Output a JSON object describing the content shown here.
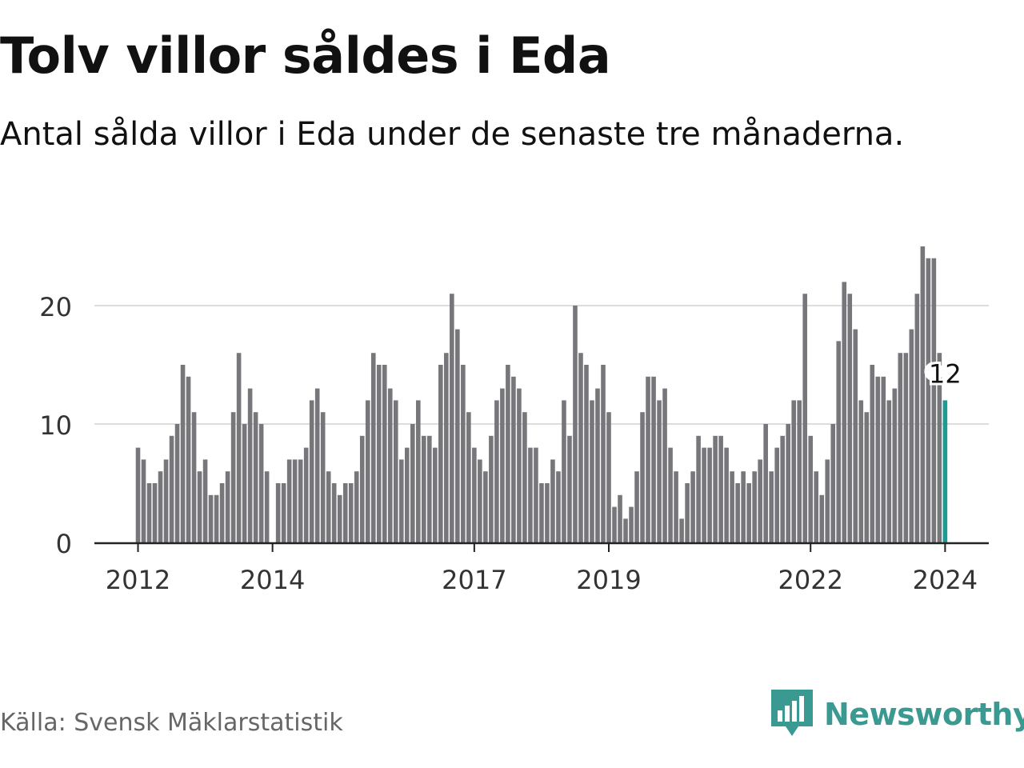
{
  "title": "Tolv villor såldes i Eda",
  "subtitle": "Antal sålda villor i Eda under de senaste tre månaderna.",
  "source": "Källa: Svensk Mäklarstatistik",
  "brand": "Newsworthy",
  "colors": {
    "bar": "#77767b",
    "highlight": "#1a9c93",
    "grid": "#dddddd",
    "axis": "#222222",
    "brand": "#3a9990"
  },
  "chart_data": {
    "type": "bar",
    "title": "Tolv villor såldes i Eda",
    "subtitle": "Antal sålda villor i Eda under de senaste tre månaderna.",
    "xlabel": "",
    "ylabel": "",
    "ylim": [
      0,
      25
    ],
    "yticks": [
      0,
      10,
      20
    ],
    "grid": true,
    "start": "2012-01",
    "xticks": [
      {
        "label": "2012",
        "index": 0
      },
      {
        "label": "2014",
        "index": 24
      },
      {
        "label": "2017",
        "index": 60
      },
      {
        "label": "2019",
        "index": 84
      },
      {
        "label": "2022",
        "index": 120
      },
      {
        "label": "2024",
        "index": 144
      }
    ],
    "highlight_index": 144,
    "highlight_label": "12",
    "values": [
      8,
      7,
      5,
      5,
      6,
      7,
      9,
      10,
      15,
      14,
      11,
      6,
      7,
      4,
      4,
      5,
      6,
      11,
      16,
      10,
      13,
      11,
      10,
      6,
      0,
      5,
      5,
      7,
      7,
      7,
      8,
      12,
      13,
      11,
      6,
      5,
      4,
      5,
      5,
      6,
      9,
      12,
      16,
      15,
      15,
      13,
      12,
      7,
      8,
      10,
      12,
      9,
      9,
      8,
      15,
      16,
      21,
      18,
      15,
      11,
      8,
      7,
      6,
      9,
      12,
      13,
      15,
      14,
      13,
      11,
      8,
      8,
      5,
      5,
      7,
      6,
      12,
      9,
      20,
      16,
      15,
      12,
      13,
      15,
      11,
      3,
      4,
      2,
      3,
      6,
      11,
      14,
      14,
      12,
      13,
      8,
      6,
      2,
      5,
      6,
      9,
      8,
      8,
      9,
      9,
      8,
      6,
      5,
      6,
      5,
      6,
      7,
      10,
      6,
      8,
      9,
      10,
      12,
      12,
      21,
      9,
      6,
      4,
      7,
      10,
      17,
      22,
      21,
      18,
      12,
      11,
      15,
      14,
      14,
      12,
      13,
      16,
      16,
      18,
      21,
      25,
      24,
      24,
      16,
      12
    ]
  }
}
